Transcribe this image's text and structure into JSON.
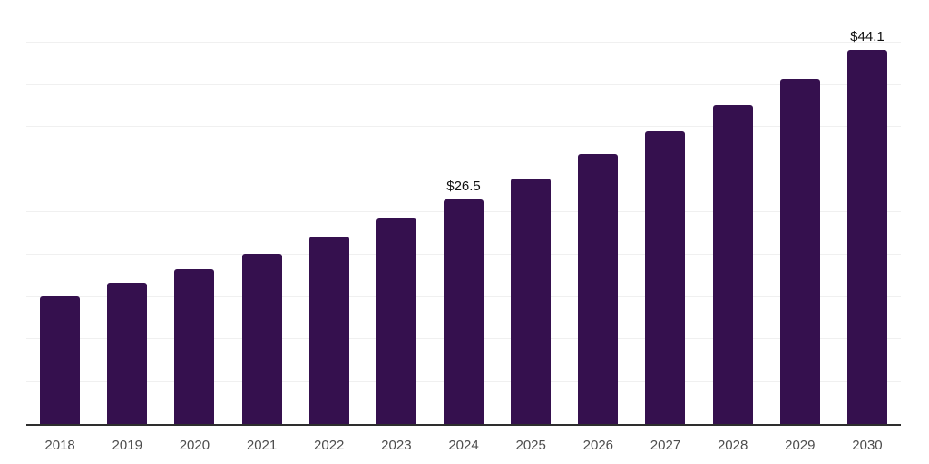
{
  "chart_data": {
    "type": "bar",
    "title": "",
    "xlabel": "",
    "ylabel": "",
    "categories": [
      "2018",
      "2019",
      "2020",
      "2021",
      "2022",
      "2023",
      "2024",
      "2025",
      "2026",
      "2027",
      "2028",
      "2029",
      "2030"
    ],
    "values": [
      15.1,
      16.7,
      18.3,
      20.1,
      22.1,
      24.3,
      26.5,
      29.0,
      31.8,
      34.5,
      37.6,
      40.7,
      44.1
    ],
    "data_labels": [
      "",
      "",
      "",
      "",
      "",
      "",
      "$26.5",
      "",
      "",
      "",
      "",
      "",
      "$44.1"
    ],
    "ylim": [
      0,
      50
    ],
    "gridline_step": 5,
    "grid": true,
    "legend": "none",
    "y_axis_labels_visible": false,
    "colors": {
      "bar": "#35104e",
      "axis_line": "#2e2e2e",
      "gridline": "#f0f0f0",
      "gridline_top": "#e6e6e6",
      "tick_label": "#4d4d4d",
      "data_label": "#111111",
      "background": "#ffffff"
    }
  }
}
